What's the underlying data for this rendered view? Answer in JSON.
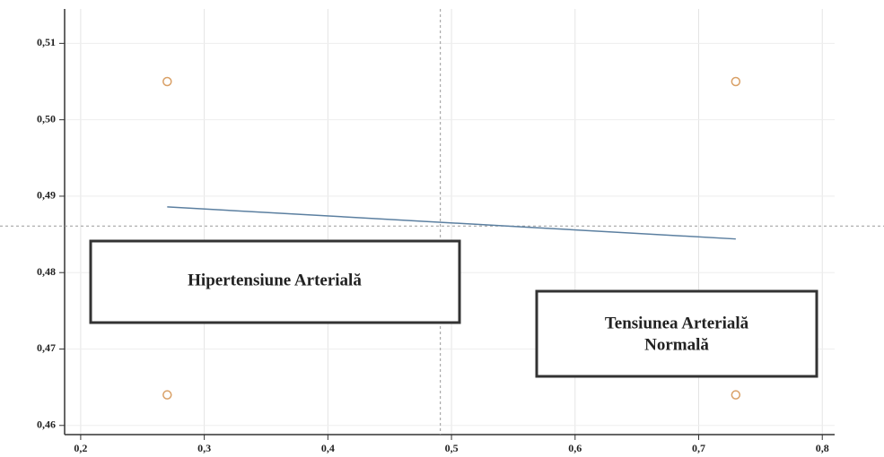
{
  "chart_data": {
    "type": "scatter",
    "points": {
      "x": [
        0.27,
        0.27,
        0.73,
        0.73
      ],
      "y": [
        0.505,
        0.464,
        0.505,
        0.464
      ],
      "color": "#d9a066"
    },
    "fit_line": {
      "x": [
        0.27,
        0.73
      ],
      "y": [
        0.4886,
        0.4844
      ],
      "color": "#5b7fa0"
    },
    "ref_x": 0.491,
    "ref_y": 0.4861,
    "xlim": [
      0.187,
      0.81
    ],
    "ylim": [
      0.4588,
      0.5145
    ],
    "xticks": [
      {
        "value": 0.2,
        "label": "0,2"
      },
      {
        "value": 0.3,
        "label": "0,3"
      },
      {
        "value": 0.4,
        "label": "0,4"
      },
      {
        "value": 0.5,
        "label": "0,5"
      },
      {
        "value": 0.6,
        "label": "0,6"
      },
      {
        "value": 0.7,
        "label": "0,7"
      },
      {
        "value": 0.8,
        "label": "0,8"
      }
    ],
    "yticks": [
      {
        "value": 0.46,
        "label": "0,46"
      },
      {
        "value": 0.47,
        "label": "0,47"
      },
      {
        "value": 0.48,
        "label": "0,48"
      },
      {
        "value": 0.49,
        "label": "0,49"
      },
      {
        "value": 0.5,
        "label": "0,50"
      },
      {
        "value": 0.51,
        "label": "0,51"
      }
    ],
    "grid": true,
    "annotations": [
      {
        "lines": [
          "Hipertensiune Arterială"
        ]
      },
      {
        "lines": [
          "Tensiunea Arterială",
          "Normală"
        ]
      }
    ]
  }
}
